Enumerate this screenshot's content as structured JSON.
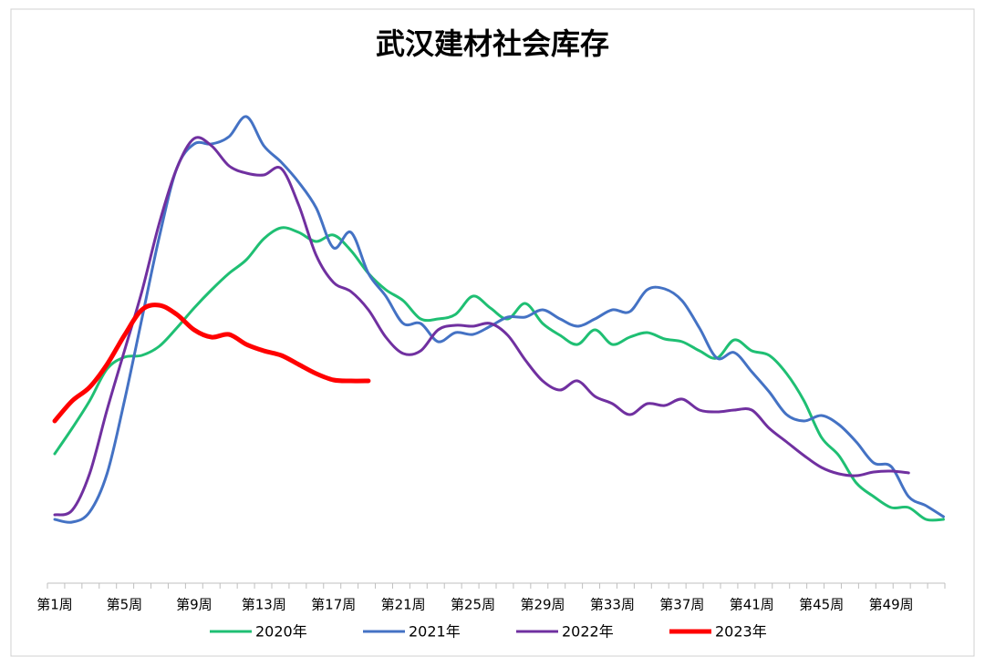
{
  "chart_data": {
    "type": "line",
    "title": "武汉建材社会库存",
    "categories": [
      "第1周",
      null,
      null,
      null,
      "第5周",
      null,
      null,
      null,
      "第9周",
      null,
      null,
      null,
      "第13周",
      null,
      null,
      null,
      "第17周",
      null,
      null,
      null,
      "第21周",
      null,
      null,
      null,
      "第25周",
      null,
      null,
      null,
      "第29周",
      null,
      null,
      null,
      "第33周",
      null,
      null,
      null,
      "第37周",
      null,
      null,
      null,
      "第41周",
      null,
      null,
      null,
      "第45周",
      null,
      null,
      null,
      "第49周",
      null,
      null,
      null
    ],
    "ylim": [
      0,
      580
    ],
    "series": [
      {
        "name": "2020年",
        "color": "#1fbf73",
        "values": [
          142,
          170,
          200,
          235,
          248,
          250,
          260,
          280,
          302,
          322,
          340,
          355,
          378,
          390,
          385,
          375,
          382,
          365,
          340,
          322,
          310,
          290,
          290,
          295,
          315,
          302,
          290,
          307,
          285,
          272,
          262,
          278,
          262,
          270,
          275,
          268,
          265,
          255,
          247,
          267,
          255,
          250,
          230,
          200,
          160,
          140,
          110,
          95,
          83,
          83,
          70,
          70
        ]
      },
      {
        "name": "2021年",
        "color": "#4472c4",
        "values": [
          70,
          67,
          78,
          120,
          200,
          290,
          380,
          455,
          482,
          482,
          490,
          512,
          480,
          462,
          440,
          412,
          368,
          385,
          340,
          315,
          285,
          285,
          265,
          275,
          273,
          282,
          292,
          292,
          300,
          290,
          282,
          290,
          300,
          298,
          322,
          323,
          310,
          280,
          247,
          253,
          232,
          210,
          185,
          178,
          184,
          174,
          155,
          132,
          128,
          95,
          85,
          73
        ]
      },
      {
        "name": "2022年",
        "color": "#7030a0",
        "values": [
          75,
          80,
          120,
          190,
          255,
          320,
          395,
          455,
          488,
          480,
          458,
          450,
          448,
          455,
          415,
          360,
          330,
          320,
          300,
          270,
          252,
          255,
          278,
          283,
          282,
          285,
          272,
          245,
          222,
          212,
          222,
          205,
          197,
          185,
          197,
          195,
          202,
          190,
          188,
          190,
          190,
          170,
          155,
          140,
          127,
          120,
          118,
          122,
          123,
          121,
          null,
          null
        ]
      },
      {
        "name": "2023年",
        "color": "#ff0000",
        "values": [
          178,
          200,
          215,
          240,
          272,
          300,
          305,
          295,
          278,
          270,
          273,
          262,
          255,
          250,
          240,
          230,
          223,
          222,
          222,
          null,
          null,
          null,
          null,
          null,
          null,
          null,
          null,
          null,
          null,
          null,
          null,
          null,
          null,
          null,
          null,
          null,
          null,
          null,
          null,
          null,
          null,
          null,
          null,
          null,
          null,
          null,
          null,
          null,
          null,
          null,
          null,
          null
        ]
      }
    ]
  }
}
